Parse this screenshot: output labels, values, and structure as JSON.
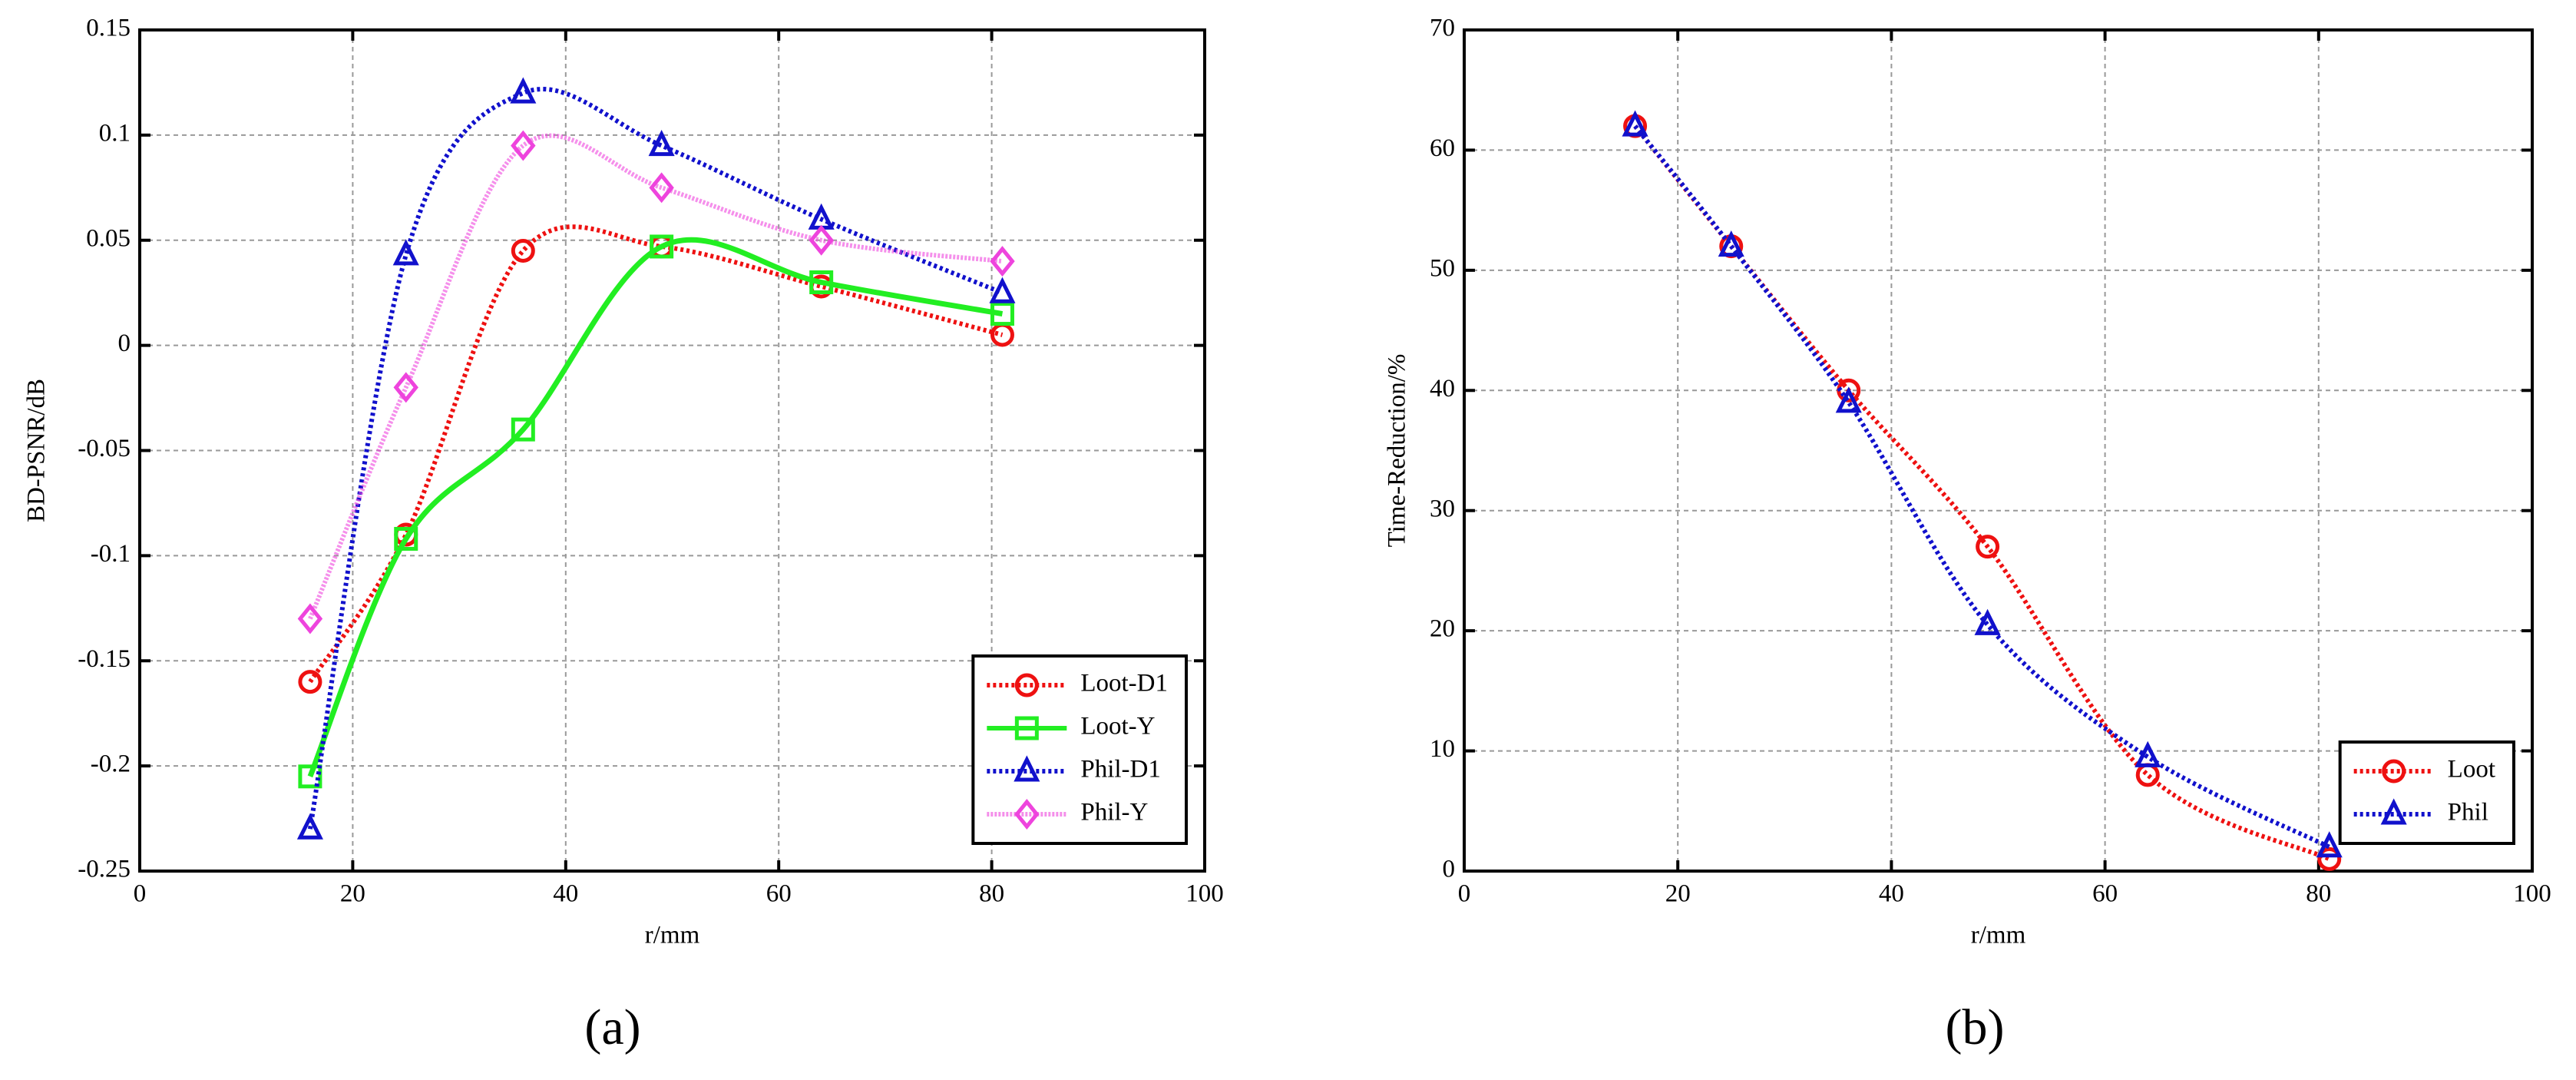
{
  "chart_data": [
    {
      "type": "line",
      "panel_label": "(a)",
      "x_label": "r/mm",
      "y_label": "BD-PSNR/dB",
      "x": [
        16,
        25,
        36,
        49,
        64,
        81
      ],
      "series": [
        {
          "name": "Loot-D1",
          "color": "#ee1111",
          "dash": "dotted",
          "marker": "circle",
          "values": [
            -0.16,
            -0.09,
            0.045,
            0.047,
            0.028,
            0.005
          ]
        },
        {
          "name": "Loot-Y",
          "color": "#22ee22",
          "dash": "solid",
          "marker": "square",
          "values": [
            -0.205,
            -0.092,
            -0.04,
            0.047,
            0.03,
            0.015
          ]
        },
        {
          "name": "Phil-D1",
          "color": "#1111cc",
          "dash": "dotted",
          "marker": "triangle",
          "values": [
            -0.23,
            0.043,
            0.12,
            0.095,
            0.06,
            0.025
          ]
        },
        {
          "name": "Phil-Y",
          "color": "#ee44dd",
          "dash": "soft",
          "marker": "diamond",
          "values": [
            -0.13,
            -0.02,
            0.095,
            0.075,
            0.05,
            0.04
          ]
        }
      ],
      "xlim": [
        0,
        100
      ],
      "xticks": [
        0,
        20,
        40,
        60,
        80,
        100
      ],
      "ylim": [
        -0.25,
        0.15
      ],
      "yticks": [
        -0.25,
        -0.2,
        -0.15,
        -0.1,
        -0.05,
        0,
        0.05,
        0.1,
        0.15
      ],
      "grid": true,
      "legend": "lower right"
    },
    {
      "type": "line",
      "panel_label": "(b)",
      "x_label": "r/mm",
      "y_label": "Time-Reduction/%",
      "x": [
        16,
        25,
        36,
        49,
        64,
        81
      ],
      "series": [
        {
          "name": "Loot",
          "color": "#ee1111",
          "dash": "dotted",
          "marker": "circle",
          "values": [
            62,
            52,
            40,
            27,
            8,
            1
          ]
        },
        {
          "name": "Phil",
          "color": "#1111cc",
          "dash": "dotted",
          "marker": "triangle",
          "values": [
            62,
            52,
            39,
            20.5,
            9.5,
            2
          ]
        }
      ],
      "xlim": [
        0,
        100
      ],
      "xticks": [
        0,
        20,
        40,
        60,
        80,
        100
      ],
      "ylim": [
        0,
        70
      ],
      "yticks": [
        0,
        10,
        20,
        30,
        40,
        50,
        60,
        70
      ],
      "grid": true,
      "legend": "lower right"
    }
  ]
}
